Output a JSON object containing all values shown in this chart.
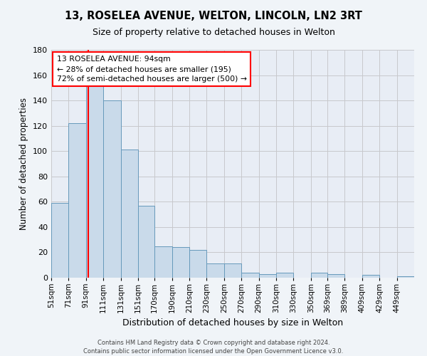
{
  "title_line1": "13, ROSELEA AVENUE, WELTON, LINCOLN, LN2 3RT",
  "title_line2": "Size of property relative to detached houses in Welton",
  "xlabel": "Distribution of detached houses by size in Welton",
  "ylabel": "Number of detached properties",
  "bar_color": "#c9daea",
  "bar_edge_color": "#6699bb",
  "bg_color": "#e8edf5",
  "fig_bg_color": "#f0f4f8",
  "grid_color": "#c8c8cc",
  "categories": [
    "51sqm",
    "71sqm",
    "91sqm",
    "111sqm",
    "131sqm",
    "151sqm",
    "170sqm",
    "190sqm",
    "210sqm",
    "230sqm",
    "250sqm",
    "270sqm",
    "290sqm",
    "310sqm",
    "330sqm",
    "350sqm",
    "369sqm",
    "389sqm",
    "409sqm",
    "429sqm",
    "449sqm"
  ],
  "values": [
    59,
    122,
    152,
    140,
    101,
    57,
    25,
    24,
    22,
    11,
    11,
    4,
    3,
    4,
    0,
    4,
    3,
    0,
    2,
    0,
    1
  ],
  "ylim": [
    0,
    180
  ],
  "yticks": [
    0,
    20,
    40,
    60,
    80,
    100,
    120,
    140,
    160,
    180
  ],
  "property_line_x": 94,
  "annotation_line1": "13 ROSELEA AVENUE: 94sqm",
  "annotation_line2": "← 28% of detached houses are smaller (195)",
  "annotation_line3": "72% of semi-detached houses are larger (500) →",
  "footnote": "Contains HM Land Registry data © Crown copyright and database right 2024.\nContains public sector information licensed under the Open Government Licence v3.0.",
  "bin_edges": [
    51,
    71,
    91,
    111,
    131,
    151,
    170,
    190,
    210,
    230,
    250,
    270,
    290,
    310,
    330,
    350,
    369,
    389,
    409,
    429,
    449,
    469
  ]
}
